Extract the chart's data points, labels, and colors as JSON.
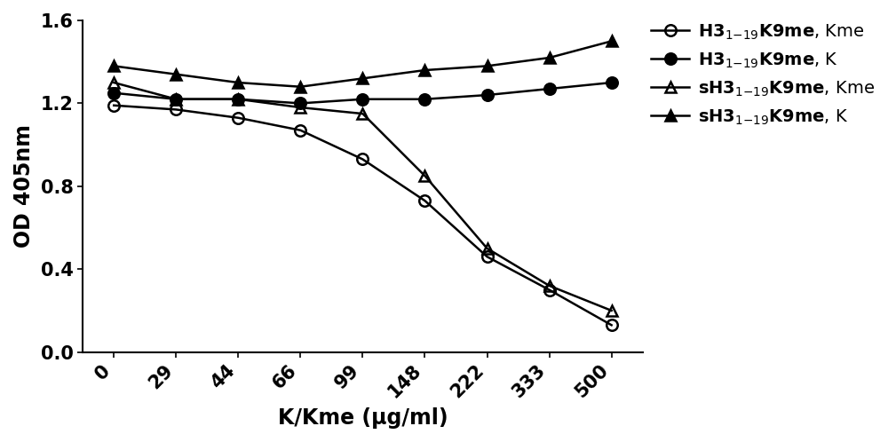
{
  "x_labels": [
    "0",
    "29",
    "44",
    "66",
    "99",
    "148",
    "222",
    "333",
    "500"
  ],
  "series_y": [
    [
      1.19,
      1.17,
      1.13,
      1.07,
      0.93,
      0.73,
      0.46,
      0.3,
      0.13
    ],
    [
      1.25,
      1.22,
      1.22,
      1.2,
      1.22,
      1.22,
      1.24,
      1.27,
      1.3
    ],
    [
      1.3,
      1.22,
      1.22,
      1.18,
      1.15,
      0.85,
      0.5,
      0.32,
      0.2
    ],
    [
      1.38,
      1.34,
      1.3,
      1.28,
      1.32,
      1.36,
      1.38,
      1.42,
      1.5
    ]
  ],
  "markers": [
    "o",
    "o",
    "^",
    "^"
  ],
  "fillstyles": [
    "none",
    "full",
    "none",
    "full"
  ],
  "color": "#000000",
  "xlabel": "K/Kme (μg/ml)",
  "ylabel": "OD 405nm",
  "ylim": [
    0.0,
    1.6
  ],
  "yticks": [
    0.0,
    0.4,
    0.8,
    1.2,
    1.6
  ],
  "background_color": "#ffffff",
  "axis_fontsize": 15,
  "legend_fontsize": 13,
  "linewidth": 1.8,
  "markersize": 9,
  "markeredgewidth": 1.8
}
